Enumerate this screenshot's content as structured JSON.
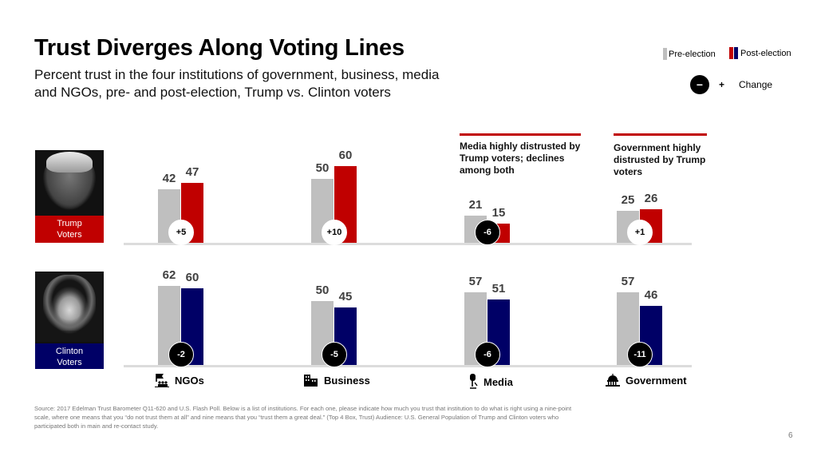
{
  "header": {
    "title": "Trust Diverges Along Voting Lines",
    "subtitle": "Percent trust in the four institutions of government, business, media and NGOs, pre- and post-election, Trump vs. Clinton voters"
  },
  "legend": {
    "pre_label": "Pre-election",
    "post_label": "Post-election",
    "change_minus": "−",
    "change_plus": "+",
    "change_label": "Change"
  },
  "colors": {
    "pre": "#bfbfbf",
    "trump": "#c00000",
    "clinton": "#000066",
    "annotation_rule": "#c00000"
  },
  "groups": {
    "trump": {
      "label_line1": "Trump",
      "label_line2": "Voters"
    },
    "clinton": {
      "label_line1": "Clinton",
      "label_line2": "Voters"
    }
  },
  "annotations": {
    "media": "Media highly distrusted by Trump voters; declines among both",
    "government": "Government highly distrusted by Trump voters"
  },
  "chart_data": {
    "type": "bar",
    "title": "Trust Diverges Along Voting Lines",
    "categories": [
      "NGOs",
      "Business",
      "Media",
      "Government"
    ],
    "category_icons": [
      "ngo-icon",
      "business-building-icon",
      "media-microphone-icon",
      "government-capitol-icon"
    ],
    "panels": [
      {
        "name": "Trump Voters",
        "series": [
          {
            "name": "Pre-election",
            "values": [
              42,
              50,
              21,
              25
            ]
          },
          {
            "name": "Post-election",
            "values": [
              47,
              60,
              15,
              26
            ]
          }
        ],
        "change_labels": [
          "+5",
          "+10",
          "-6",
          "+1"
        ]
      },
      {
        "name": "Clinton Voters",
        "series": [
          {
            "name": "Pre-election",
            "values": [
              62,
              50,
              57,
              57
            ]
          },
          {
            "name": "Post-election",
            "values": [
              60,
              45,
              51,
              46
            ]
          }
        ],
        "change_labels": [
          "-2",
          "-5",
          "-6",
          "-11"
        ]
      }
    ],
    "ylim": [
      0,
      100
    ],
    "grid": false,
    "legend_position": "top-right",
    "xlabel": "",
    "ylabel": "Percent trust"
  },
  "footer": {
    "source": "Source: 2017 Edelman Trust Barometer Q11-620 and U.S. Flash Poll. Below is a list of institutions. For each one, please indicate how much you trust that institution to do what is right using a nine-point scale, where one means that you “do not trust them at all” and nine means that you “trust them a great deal.” (Top 4 Box, Trust) Audience: U.S. General Population of Trump and Clinton voters who participated both in main and re-contact study.",
    "page_number": "6"
  }
}
